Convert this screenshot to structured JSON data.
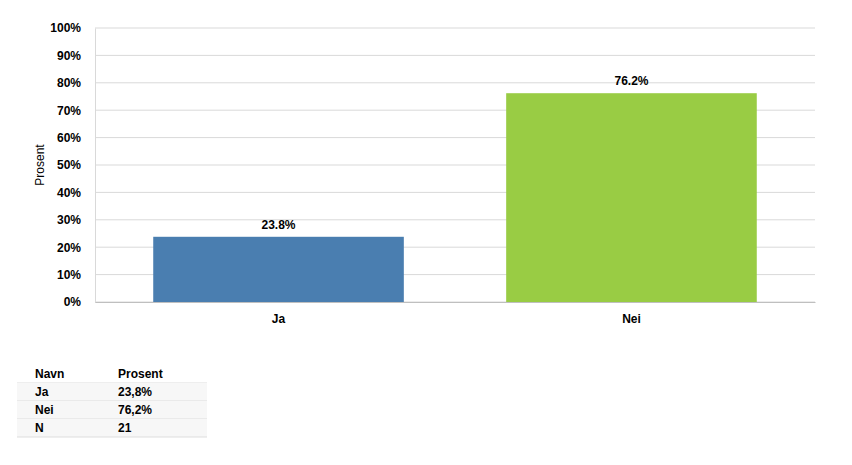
{
  "chart_data": {
    "type": "bar",
    "categories": [
      "Ja",
      "Nei"
    ],
    "values": [
      23.8,
      76.2
    ],
    "value_labels": [
      "23.8%",
      "76.2%"
    ],
    "colors": [
      "#4a7eb0",
      "#99cc44"
    ],
    "y_label": "Prosent",
    "ylim": [
      0,
      100
    ],
    "yticks": [
      {
        "value": 0,
        "label": "0%"
      },
      {
        "value": 10,
        "label": "10%"
      },
      {
        "value": 20,
        "label": "20%"
      },
      {
        "value": 30,
        "label": "30%"
      },
      {
        "value": 40,
        "label": "40%"
      },
      {
        "value": 50,
        "label": "50%"
      },
      {
        "value": 60,
        "label": "60%"
      },
      {
        "value": 70,
        "label": "70%"
      },
      {
        "value": 80,
        "label": "80%"
      },
      {
        "value": 90,
        "label": "90%"
      },
      {
        "value": 100,
        "label": "100%"
      }
    ],
    "grid": true,
    "data_labels": true
  },
  "table": {
    "header": [
      "Navn",
      "Prosent"
    ],
    "rows": [
      [
        "Ja",
        "23,8%"
      ],
      [
        "Nei",
        "76,2%"
      ],
      [
        "N",
        "21"
      ]
    ]
  }
}
